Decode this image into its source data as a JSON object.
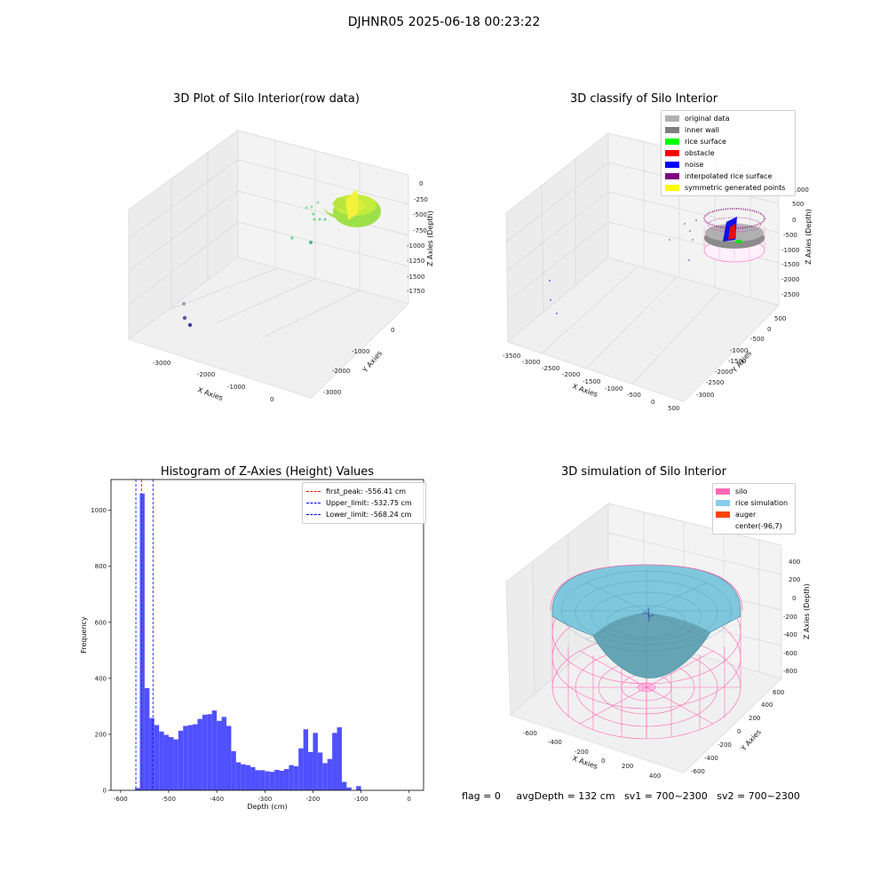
{
  "suptitle": "DJHNR05 2025-06-18 00:23:22",
  "panel1": {
    "title": "3D Plot of Silo Interior(row data)",
    "xlabel": "X Axies",
    "ylabel": "Y Axies",
    "zlabel": "Z Axies (Depth)",
    "xticks": [
      "-3000",
      "-2000",
      "-1000",
      "0"
    ],
    "yticks": [
      "0",
      "-1000",
      "-2000",
      "-3000"
    ],
    "zticks": [
      "0",
      "-250",
      "-500",
      "-750",
      "-1000",
      "-1250",
      "-1500",
      "-1750"
    ]
  },
  "panel2": {
    "title": "3D classify of Silo Interior",
    "xlabel": "X Axies",
    "ylabel": "Y Axies",
    "zlabel": "Z Axies (Depth)",
    "xticks": [
      "-3500",
      "-3000",
      "-2500",
      "-2000",
      "-1500",
      "-1000",
      "-500",
      "0",
      "500"
    ],
    "yticks": [
      "500",
      "0",
      "-500",
      "-1000",
      "-1500",
      "-2000",
      "-2500",
      "-3000"
    ],
    "zticks": [
      "1000",
      "500",
      "0",
      "-500",
      "-1000",
      "-1500",
      "-2000",
      "-2500"
    ],
    "legend": [
      {
        "label": "original data",
        "color": "#b0b0b0"
      },
      {
        "label": "inner wall",
        "color": "#808080"
      },
      {
        "label": "rice surface",
        "color": "#00ff00"
      },
      {
        "label": "obstacle",
        "color": "#ff0000"
      },
      {
        "label": "noise",
        "color": "#0000ff"
      },
      {
        "label": "interpolated rice surface",
        "color": "#800080"
      },
      {
        "label": "symmetric generated points",
        "color": "#ffff00"
      }
    ]
  },
  "panel3": {
    "title": "Histogram of Z-Axies (Height) Values",
    "xlabel": "Depth (cm)",
    "ylabel": "Frequency",
    "legend": [
      {
        "label": "first_peak: -556.41 cm",
        "color": "#ff0000"
      },
      {
        "label": "Upper_limit: -532.75 cm",
        "color": "#0000ff"
      },
      {
        "label": "Lower_limit: -568.24 cm",
        "color": "#0000ff"
      }
    ]
  },
  "panel4": {
    "title": "3D simulation of Silo Interior",
    "xlabel": "X Axies",
    "ylabel": "Y Axies",
    "zlabel": "Z Axies (Depth)",
    "xticks": [
      "-600",
      "-400",
      "-200",
      "0",
      "200",
      "400"
    ],
    "yticks": [
      "600",
      "400",
      "200",
      "0",
      "-200",
      "-400",
      "-600"
    ],
    "zticks": [
      "400",
      "200",
      "0",
      "-200",
      "-400",
      "-600",
      "-800"
    ],
    "legend": [
      {
        "label": "silo",
        "color": "#ff69b4"
      },
      {
        "label": "rice simulation",
        "color": "#87ceeb"
      },
      {
        "label": "auger",
        "color": "#ff4500"
      },
      {
        "label": "center(-96,7)",
        "color": ""
      }
    ]
  },
  "footer": {
    "flag": "flag = 0",
    "avg": "avgDepth = 132 cm",
    "sv1": "sv1 = 700~2300",
    "sv2": "sv2 = 700~2300"
  },
  "chart_data": [
    {
      "type": "bar",
      "title": "Histogram of Z-Axies (Height) Values",
      "xlabel": "Depth (cm)",
      "ylabel": "Frequency",
      "xlim": [
        -620,
        30
      ],
      "ylim": [
        0,
        1110
      ],
      "xticks": [
        -600,
        -500,
        -400,
        -300,
        -200,
        -100,
        0
      ],
      "yticks": [
        0,
        200,
        400,
        600,
        800,
        1000
      ],
      "bin_width": 10,
      "color": "#5050ff",
      "bins": [
        {
          "x": -565,
          "y": 8
        },
        {
          "x": -555,
          "y": 1060
        },
        {
          "x": -545,
          "y": 365
        },
        {
          "x": -535,
          "y": 258
        },
        {
          "x": -525,
          "y": 233
        },
        {
          "x": -515,
          "y": 210
        },
        {
          "x": -505,
          "y": 198
        },
        {
          "x": -495,
          "y": 190
        },
        {
          "x": -485,
          "y": 182
        },
        {
          "x": -475,
          "y": 213
        },
        {
          "x": -465,
          "y": 230
        },
        {
          "x": -455,
          "y": 233
        },
        {
          "x": -445,
          "y": 236
        },
        {
          "x": -435,
          "y": 255
        },
        {
          "x": -425,
          "y": 270
        },
        {
          "x": -415,
          "y": 272
        },
        {
          "x": -405,
          "y": 285
        },
        {
          "x": -395,
          "y": 248
        },
        {
          "x": -385,
          "y": 262
        },
        {
          "x": -375,
          "y": 230
        },
        {
          "x": -365,
          "y": 140
        },
        {
          "x": -355,
          "y": 100
        },
        {
          "x": -345,
          "y": 93
        },
        {
          "x": -335,
          "y": 90
        },
        {
          "x": -325,
          "y": 83
        },
        {
          "x": -315,
          "y": 72
        },
        {
          "x": -305,
          "y": 72
        },
        {
          "x": -295,
          "y": 68
        },
        {
          "x": -285,
          "y": 66
        },
        {
          "x": -275,
          "y": 73
        },
        {
          "x": -265,
          "y": 70
        },
        {
          "x": -255,
          "y": 76
        },
        {
          "x": -245,
          "y": 90
        },
        {
          "x": -235,
          "y": 86
        },
        {
          "x": -225,
          "y": 150
        },
        {
          "x": -215,
          "y": 218
        },
        {
          "x": -205,
          "y": 137
        },
        {
          "x": -195,
          "y": 205
        },
        {
          "x": -185,
          "y": 135
        },
        {
          "x": -175,
          "y": 97
        },
        {
          "x": -165,
          "y": 112
        },
        {
          "x": -155,
          "y": 205
        },
        {
          "x": -145,
          "y": 225
        },
        {
          "x": -135,
          "y": 30
        },
        {
          "x": -125,
          "y": 10
        },
        {
          "x": -105,
          "y": 15
        }
      ],
      "vlines": [
        {
          "label": "first_peak: -556.41 cm",
          "x": -556.41,
          "color": "#ff0000"
        },
        {
          "label": "Upper_limit: -532.75 cm",
          "x": -532.75,
          "color": "#0000ff"
        },
        {
          "label": "Lower_limit: -568.24 cm",
          "x": -568.24,
          "color": "#0000ff"
        }
      ],
      "legend_position": "top-right"
    }
  ]
}
